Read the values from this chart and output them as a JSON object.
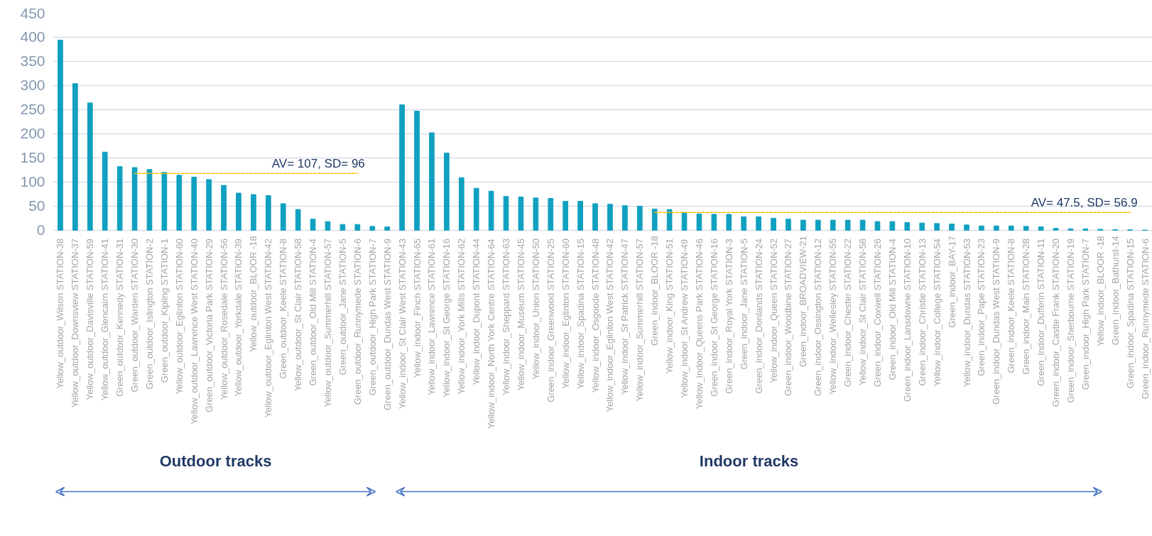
{
  "chart_data": {
    "type": "bar",
    "categories": [
      "Yellow_outdoor_Wilson  STATION-38",
      "Yellow_outdoor_Downsview  STATION-37",
      "Yellow_outdoor_Davisville  STATION-59",
      "Yellow_outdoor_Glencairn  STATION-41",
      "Green_outdoor_Kennedy  STATION-31",
      "Green_outdoor_Warden  STATION-30",
      "Green_outdoor_Islington  STATION-2",
      "Green_outdoor_Kipling  STATION-1",
      "Yellow_outdoor_Eglinton  STATION-60",
      "Yellow_outdoor_Lawrence West  STATION-40",
      "Green_outdoor_Victoria Park  STATION-29",
      "Yellow_outdoor_Rosedale  STATION-56",
      "Yellow_outdoor_Yorkdale  STATION-39",
      "Yellow_outdoor_BLOOR -18",
      "Yellow_outdoor_Eglinton West  STATION-42",
      "Green_outdoor_Keele  STATION-8",
      "Yellow_outdoor_St Clair  STATION-58",
      "Green_outdoor_Old Mill  STATION-4",
      "Yellow_outdoor_Summerhill  STATION-57",
      "Green_outdoor_Jane  STATION-5",
      "Green_outdoor_Runnymede  STATION-6",
      "Green_outdoor_High Park  STATION-7",
      "Green_outdoor_Dundas West  STATION-9",
      "Yellow_indoor_St Clair West  STATION-43",
      "Yellow_indoor_Finch  STATION-65",
      "Yellow_indoor_Lawrence  STATION-61",
      "Yellow_indoor_St George  STATION-16",
      "Yellow_indoor_York Mills  STATION-62",
      "Yellow_indoor_Dupont  STATION-44",
      "Yellow_indoor_North York Centre  STATION-64",
      "Yellow_indoor_Sheppard  STATION-63",
      "Yellow_indoor_Museum  STATION-45",
      "Yellow_indoor_Union  STATION-50",
      "Green_indoor_Greenwood  STATION-25",
      "Yellow_indoor_Eglinton  STATION-60",
      "Yellow_indoor_Spadina  STATION-15",
      "Yellow_indoor_Osgoode  STATION-48",
      "Yellow_indoor_Eglinton West  STATION-42",
      "Yellow_indoor_St Patrick  STATION-47",
      "Yellow_indoor_Summerhill  STATION-57",
      "Green_indoor_BLOOR -18",
      "Yellow_indoor_King  STATION-51",
      "Yellow_indoor_St Andrew  STATION-49",
      "Yellow_indoor_Queens Park  STATION-46",
      "Green_indoor_St George  STATION-16",
      "Green_indoor_Royal York  STATION-3",
      "Green_indoor_Jane  STATION-5",
      "Green_indoor_Donlands  STATION-24",
      "Yellow_indoor_Queen  STATION-52",
      "Green_indoor_Woodbine  STATION-27",
      "Green_indoor_BROADVIEW-21",
      "Green_indoor_Ossington  STATION-12",
      "Yellow_indoor_Wellesley  STATION-55",
      "Green_indoor_Chester  STATION-22",
      "Yellow_indoor_St Clair  STATION-58",
      "Green_indoor_Coxwell  STATION-26",
      "Green_indoor_Old Mill  STATION-4",
      "Green_indoor_Lansdowne  STATION-10",
      "Green_indoor_Christie  STATION-13",
      "Yellow_indoor_College  STATION-54",
      "Green_indoor_BAY-17",
      "Yellow_indoor_Dundas  STATION-53",
      "Green_indoor_Pape  STATION-23",
      "Green_indoor_Dundas West  STATION-9",
      "Green_indoor_Keele  STATION-8",
      "Green_indoor_Main  STATION-28",
      "Green_indoor_Dufferin  STATION-11",
      "Green_indoor_Castle Frank  STATION-20",
      "Green_indoor_Sherbourne  STATION-19",
      "Green_indoor_High Park  STATION-7",
      "Yellow_indoor_BLOOR -18",
      "Green_indoor_Bathurst-14",
      "Green_indoor_Spadina  STATION-15",
      "Green_indoor_Runnymede  STATION-6"
    ],
    "series": [
      {
        "color": "#10a0c0",
        "values": [
          394,
          304,
          264,
          162,
          132,
          130,
          126,
          120,
          114,
          110,
          105,
          93,
          77,
          74,
          72,
          55,
          43,
          23,
          18,
          12,
          12,
          8,
          7,
          260,
          247,
          202,
          160,
          109,
          87,
          81,
          70,
          69,
          67,
          66,
          60,
          60,
          55,
          54,
          51,
          50,
          44,
          43,
          37,
          34,
          33,
          33,
          28,
          28,
          25,
          23,
          21,
          21,
          21,
          21,
          21,
          18,
          18,
          16,
          15,
          14,
          13,
          11,
          9,
          9,
          9,
          8,
          7,
          4,
          3,
          3,
          2,
          1,
          1,
          0
        ]
      },
      {
        "type": "line",
        "color": "#ffc000",
        "line_style": "dashed",
        "x": [
          "Green_outdoor_Warden  STATION-30",
          "Green_outdoor_Runnymede  STATION-6"
        ],
        "values": [
          118,
          118
        ]
      },
      {
        "type": "line",
        "color": "#ffc000",
        "line_style": "dashed",
        "x": [
          "Green_indoor_BLOOR -18",
          "Green_indoor_Spadina  STATION-15"
        ],
        "values": [
          37,
          37
        ]
      }
    ],
    "ylim": [
      0,
      450
    ],
    "yticks": [
      0,
      50,
      100,
      150,
      200,
      250,
      300,
      350,
      400,
      450
    ],
    "grid": "y",
    "annotations": [
      {
        "text": "AV= 107, SD= 96",
        "x": "Green_outdoor_Runnymede  STATION-6",
        "y": 118
      },
      {
        "text": "AV= 47.5, SD= 56.9",
        "x": "Green_indoor_Spadina  STATION-15",
        "y": 37
      },
      "Outdoor tracks",
      "Indoor tracks"
    ]
  }
}
